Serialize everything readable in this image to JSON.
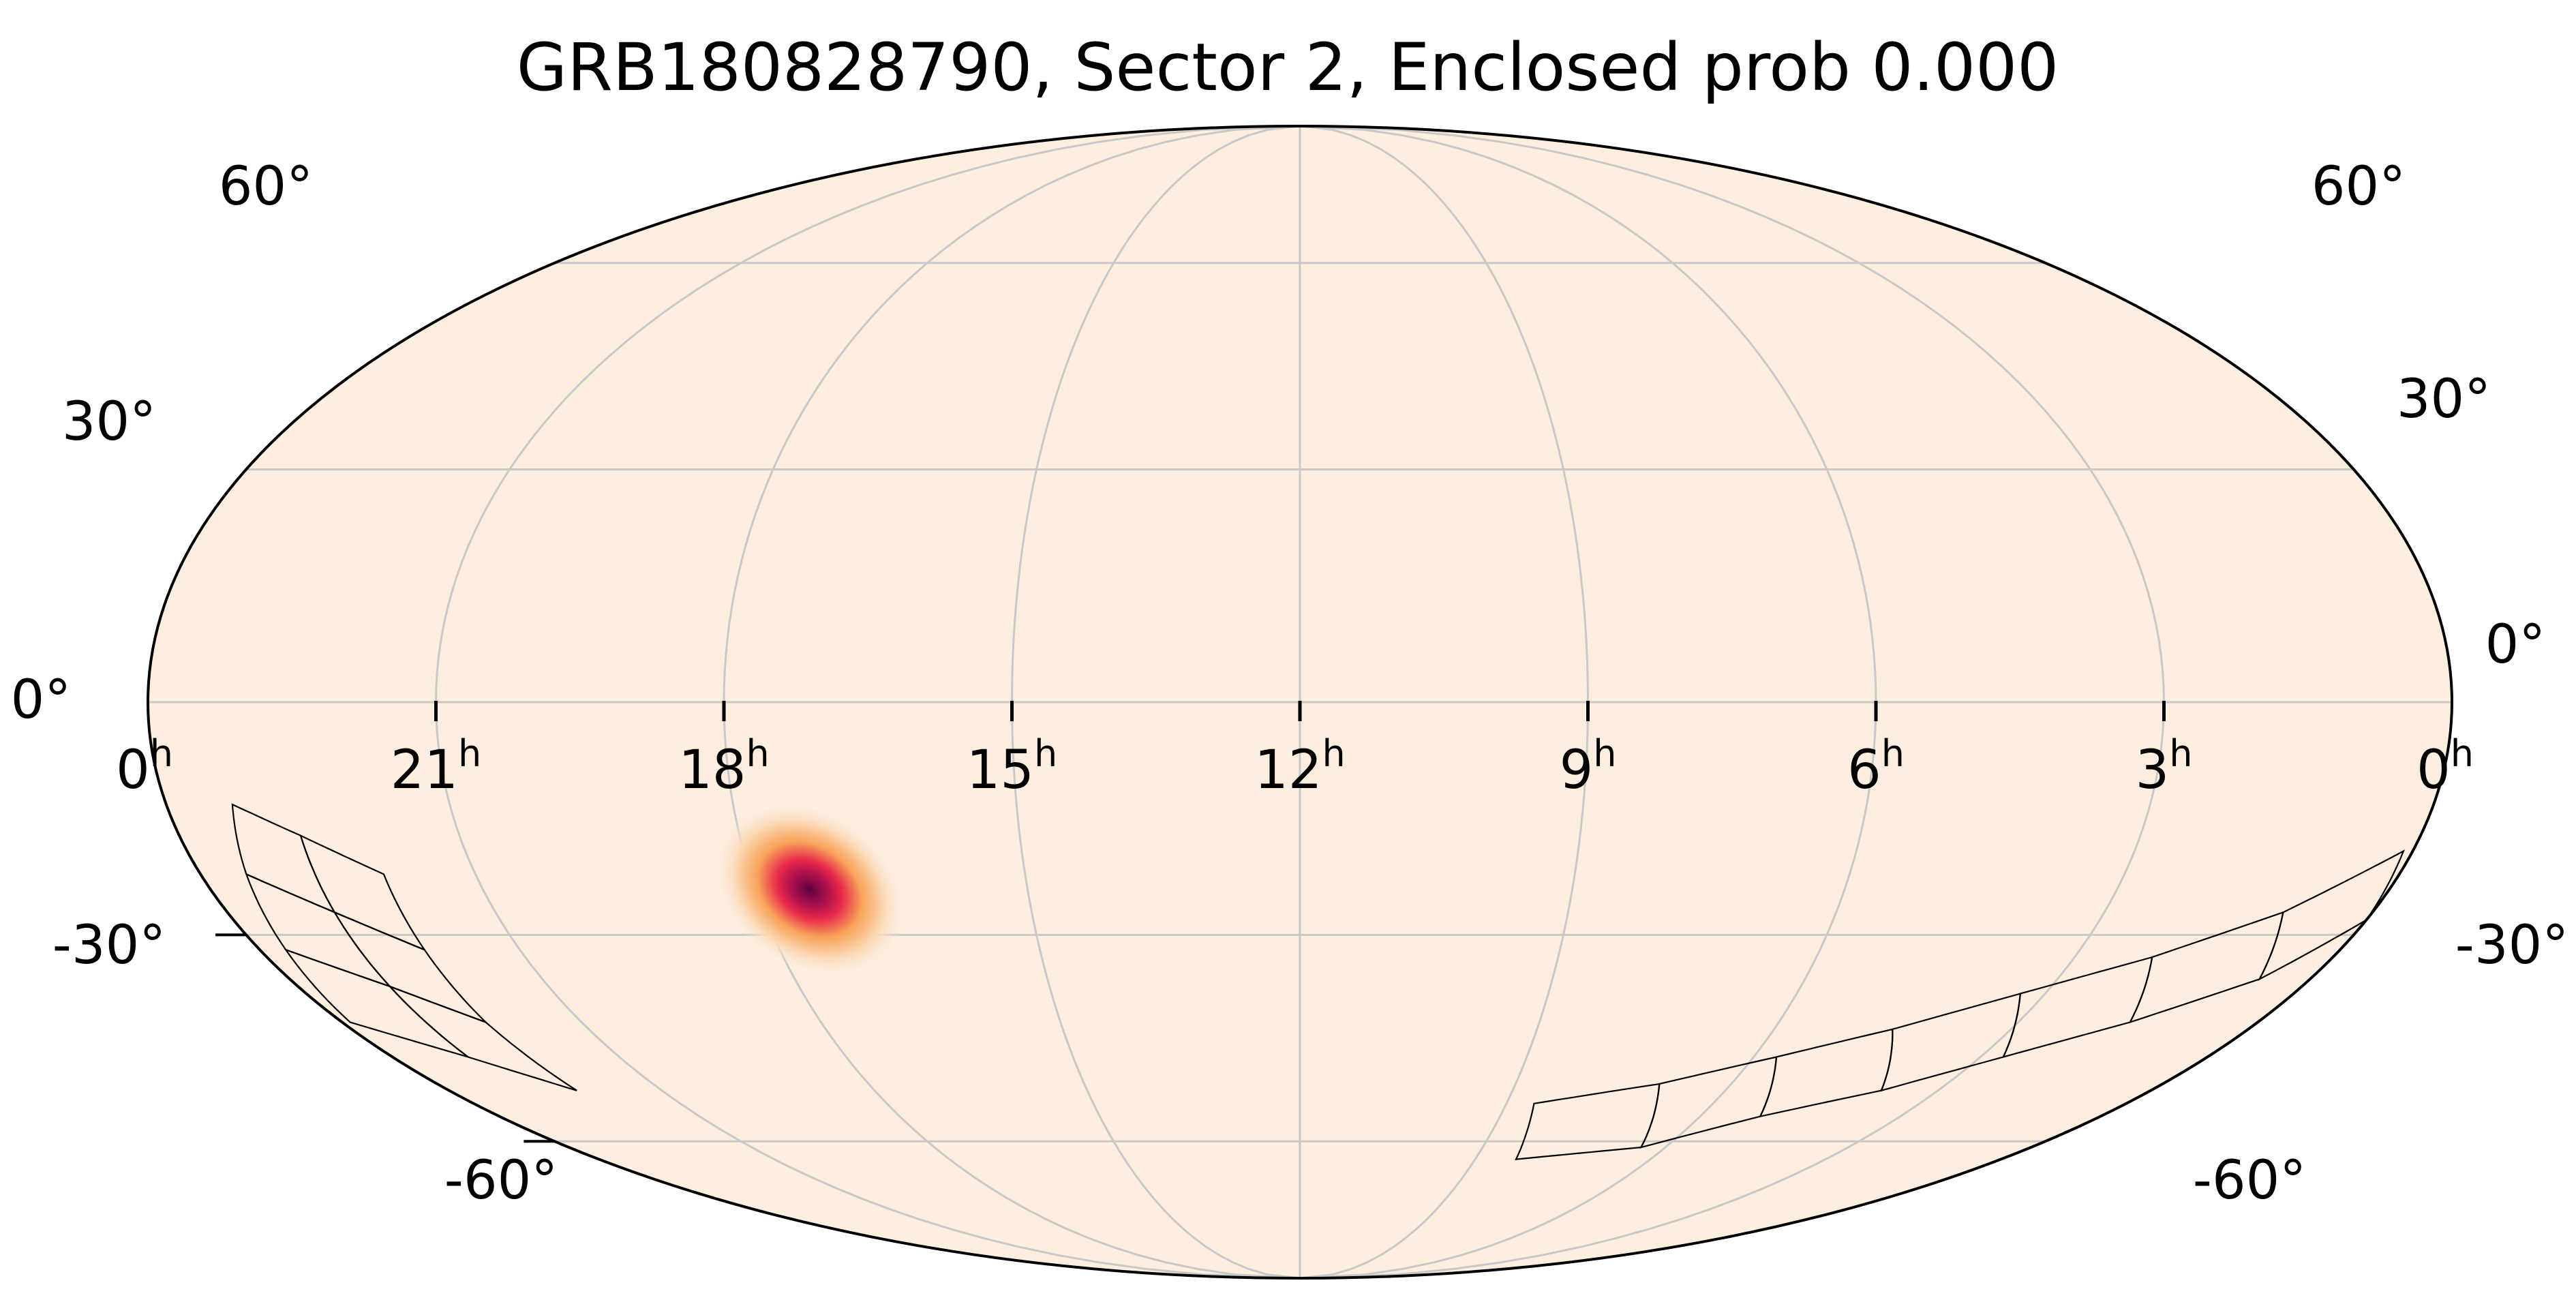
{
  "chart_data": {
    "type": "heatmap",
    "projection": "mollweide",
    "title": "GRB180828790, Sector 2, Enclosed prob 0.000",
    "ra_ticks": [
      {
        "ra_h": 24,
        "label": "0",
        "unit": "h"
      },
      {
        "ra_h": 21,
        "label": "21",
        "unit": "h"
      },
      {
        "ra_h": 18,
        "label": "18",
        "unit": "h"
      },
      {
        "ra_h": 15,
        "label": "15",
        "unit": "h"
      },
      {
        "ra_h": 12,
        "label": "12",
        "unit": "h"
      },
      {
        "ra_h": 9,
        "label": "9",
        "unit": "h"
      },
      {
        "ra_h": 6,
        "label": "6",
        "unit": "h"
      },
      {
        "ra_h": 3,
        "label": "3",
        "unit": "h"
      },
      {
        "ra_h": 0,
        "label": "0",
        "unit": "h"
      }
    ],
    "dec_ticks": [
      {
        "dec": 60,
        "label": "60°"
      },
      {
        "dec": 30,
        "label": "30°"
      },
      {
        "dec": 0,
        "label": "0°"
      },
      {
        "dec": -30,
        "label": "-30°"
      },
      {
        "dec": -60,
        "label": "-60°"
      }
    ],
    "grid": true,
    "ra_range_h": [
      0,
      24
    ],
    "dec_range": [
      -90,
      90
    ],
    "background_color": "#fdeee0",
    "grid_color": "#c8c8c8",
    "probability_peak": {
      "ra_h": 17.4,
      "dec": -24,
      "sigma_deg": 6,
      "colors": [
        "#fdeee0",
        "#f8a35a",
        "#e8284b",
        "#8a0a4a"
      ]
    },
    "sector_footprints": [
      {
        "ra_h": [
          23.3,
          22.7,
          22.8,
          23.5
        ],
        "dec": [
          -13,
          -17,
          -27,
          -22
        ]
      },
      {
        "ra_h": [
          22.7,
          22.0,
          22.1,
          22.8
        ],
        "dec": [
          -17,
          -22,
          -32,
          -27
        ]
      },
      {
        "ra_h": [
          23.5,
          22.8,
          22.9,
          23.7
        ],
        "dec": [
          -22,
          -27,
          -37,
          -32
        ]
      },
      {
        "ra_h": [
          22.8,
          22.1,
          22.2,
          22.9
        ],
        "dec": [
          -27,
          -32,
          -42,
          -37
        ]
      },
      {
        "ra_h": [
          23.7,
          22.9,
          23.0,
          23.9
        ],
        "dec": [
          -32,
          -37,
          -47,
          -42
        ]
      },
      {
        "ra_h": [
          22.9,
          22.2,
          22.2,
          23.0
        ],
        "dec": [
          -37,
          -42,
          -52,
          -47
        ]
      },
      {
        "ra_h": [
          8.6,
          7.0,
          6.4,
          8.3
        ],
        "dec": [
          -54,
          -51,
          -61,
          -63
        ]
      },
      {
        "ra_h": [
          7.0,
          5.7,
          5.1,
          6.4
        ],
        "dec": [
          -51,
          -47,
          -56,
          -61
        ]
      },
      {
        "ra_h": [
          5.7,
          4.5,
          3.8,
          5.1
        ],
        "dec": [
          -47,
          -43,
          -52,
          -56
        ]
      },
      {
        "ra_h": [
          4.5,
          3.3,
          2.7,
          3.8
        ],
        "dec": [
          -43,
          -38,
          -47,
          -52
        ]
      },
      {
        "ra_h": [
          3.3,
          2.1,
          1.6,
          2.7
        ],
        "dec": [
          -38,
          -33,
          -42,
          -47
        ]
      },
      {
        "ra_h": [
          2.1,
          1.0,
          0.6,
          1.6
        ],
        "dec": [
          -33,
          -27,
          -36,
          -42
        ]
      },
      {
        "ra_h": [
          1.0,
          0.1,
          0.0,
          0.6
        ],
        "dec": [
          -27,
          -19,
          -28,
          -36
        ]
      }
    ]
  }
}
